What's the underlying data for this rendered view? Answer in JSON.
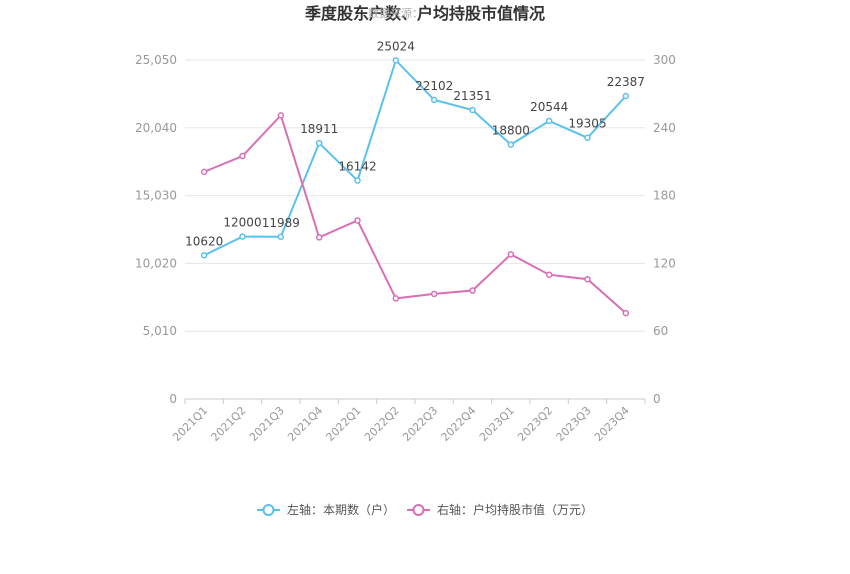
{
  "chart_data": {
    "type": "line",
    "title": "季度股东户数、户均持股市值情况",
    "watermark": "数据来源：",
    "categories": [
      "2021Q1",
      "2021Q2",
      "2021Q3",
      "2021Q4",
      "2022Q1",
      "2022Q2",
      "2022Q3",
      "2022Q4",
      "2023Q1",
      "2023Q2",
      "2023Q3",
      "2023Q4"
    ],
    "left_axis": {
      "min": 0,
      "max": 25050,
      "ticks": [
        "0",
        "5,010",
        "10,020",
        "15,030",
        "20,040",
        "25,050"
      ],
      "tick_values": [
        0,
        5010,
        10020,
        15030,
        20040,
        25050
      ]
    },
    "right_axis": {
      "min": 0,
      "max": 300,
      "ticks": [
        "0",
        "60",
        "120",
        "180",
        "240",
        "300"
      ],
      "tick_values": [
        0,
        60,
        120,
        180,
        240,
        300
      ]
    },
    "series": [
      {
        "name": "左轴：本期数（户）",
        "axis": "left",
        "color": "#5bc0ee",
        "values": [
          10620,
          12000,
          11989,
          18911,
          16142,
          25024,
          22102,
          21351,
          18800,
          20544,
          19305,
          22387
        ],
        "labels": [
          "10620",
          "12000",
          "11989",
          "18911",
          "16142",
          "25024",
          "22102",
          "21351",
          "18800",
          "20544",
          "19305",
          "22387"
        ]
      },
      {
        "name": "右轴：户均持股市值（万元）",
        "axis": "right",
        "color": "#d96fb5",
        "values": [
          201,
          215,
          251,
          143,
          158,
          89,
          93,
          96,
          128,
          110,
          106,
          76
        ]
      }
    ],
    "grid": true,
    "legend_position": "bottom"
  }
}
